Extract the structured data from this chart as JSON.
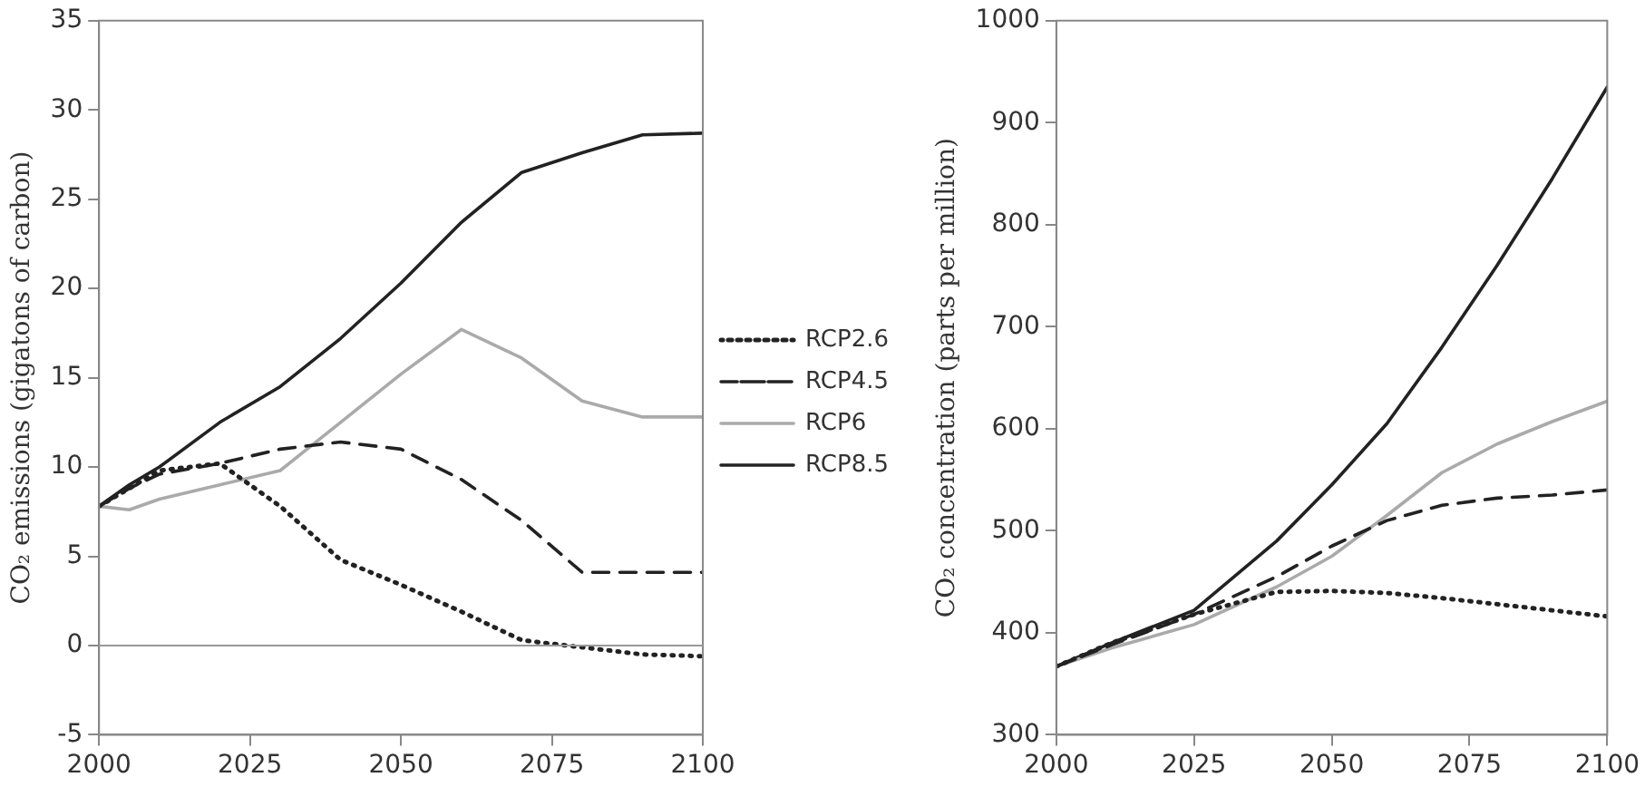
{
  "chart_data": [
    {
      "type": "line",
      "ylabel": "CO₂ emissions (gigatons of carbon)",
      "xlim": [
        2000,
        2100
      ],
      "xticks": [
        2000,
        2025,
        2050,
        2075,
        2100
      ],
      "ylim": [
        -5,
        35
      ],
      "yticks": [
        -5,
        0,
        5,
        10,
        15,
        20,
        25,
        30,
        35
      ],
      "grid": false,
      "legend": "right",
      "marker": "none",
      "ref_lines": [
        {
          "axis": "y",
          "value": 0,
          "color": "#999999"
        }
      ],
      "x": [
        2000,
        2005,
        2010,
        2020,
        2030,
        2040,
        2050,
        2060,
        2070,
        2080,
        2090,
        2100
      ],
      "series": [
        {
          "name": "RCP2.6",
          "color": "#222222",
          "line_style": "dotted",
          "values": [
            7.8,
            8.8,
            9.8,
            10.2,
            7.8,
            4.8,
            3.4,
            1.9,
            0.3,
            -0.1,
            -0.5,
            -0.6
          ]
        },
        {
          "name": "RCP4.5",
          "color": "#222222",
          "line_style": "dashed",
          "values": [
            7.8,
            8.8,
            9.6,
            10.2,
            11,
            11.4,
            11,
            9.3,
            7,
            4.1,
            4.1,
            4.1
          ]
        },
        {
          "name": "RCP6",
          "color": "#aaaaaa",
          "line_style": "solid",
          "values": [
            7.8,
            7.6,
            8.2,
            9,
            9.8,
            12.5,
            15.2,
            17.7,
            16.1,
            13.7,
            12.8,
            12.8
          ]
        },
        {
          "name": "RCP8.5",
          "color": "#222222",
          "line_style": "solid",
          "values": [
            7.8,
            9,
            10,
            12.5,
            14.5,
            17.2,
            20.3,
            23.7,
            26.5,
            27.6,
            28.6,
            28.7
          ]
        }
      ]
    },
    {
      "type": "line",
      "ylabel": "CO₂ concentration (parts per million)",
      "xlim": [
        2000,
        2100
      ],
      "xticks": [
        2000,
        2025,
        2050,
        2075,
        2100
      ],
      "ylim": [
        300,
        1000
      ],
      "yticks": [
        300,
        400,
        500,
        600,
        700,
        800,
        900,
        1000
      ],
      "grid": false,
      "marker": "none",
      "x": [
        2000,
        2010,
        2025,
        2040,
        2050,
        2060,
        2070,
        2080,
        2090,
        2100
      ],
      "series": [
        {
          "color": "#222222",
          "line_style": "dotted",
          "values": [
            367,
            390,
            418,
            440,
            441,
            439,
            434,
            428,
            422,
            416
          ]
        },
        {
          "color": "#222222",
          "line_style": "dashed",
          "values": [
            367,
            388,
            418,
            455,
            485,
            510,
            525,
            532,
            535,
            540
          ]
        },
        {
          "color": "#aaaaaa",
          "line_style": "solid",
          "values": [
            367,
            385,
            408,
            445,
            475,
            515,
            557,
            585,
            607,
            627
          ]
        },
        {
          "color": "#222222",
          "line_style": "solid",
          "values": [
            367,
            390,
            422,
            490,
            545,
            605,
            680,
            760,
            845,
            935
          ]
        }
      ]
    }
  ]
}
